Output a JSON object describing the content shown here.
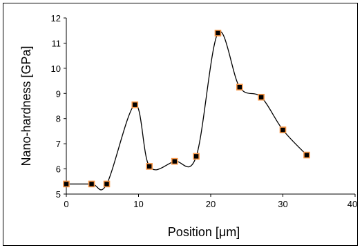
{
  "chart_data": {
    "type": "scatter",
    "title": "",
    "xlabel": "Position [μm]",
    "ylabel": "Nano-hardness [GPa]",
    "xlim": [
      0,
      40
    ],
    "ylim": [
      5,
      12
    ],
    "xticks": [
      0,
      10,
      20,
      30,
      40
    ],
    "yticks": [
      5,
      6,
      7,
      8,
      9,
      10,
      11,
      12
    ],
    "grid": false,
    "line": "smooth",
    "series": [
      {
        "x": [
          0,
          3.5,
          5.6,
          9.5,
          11.5,
          15,
          18,
          21,
          24,
          27,
          30,
          33.3
        ],
        "y": [
          5.4,
          5.4,
          5.4,
          8.55,
          6.1,
          6.3,
          6.5,
          11.4,
          9.25,
          8.85,
          7.55,
          6.55
        ]
      }
    ],
    "colors": {
      "line": "#000000",
      "marker_fill": "#000000",
      "marker_border": "#f79646",
      "axis": "#000000"
    }
  }
}
